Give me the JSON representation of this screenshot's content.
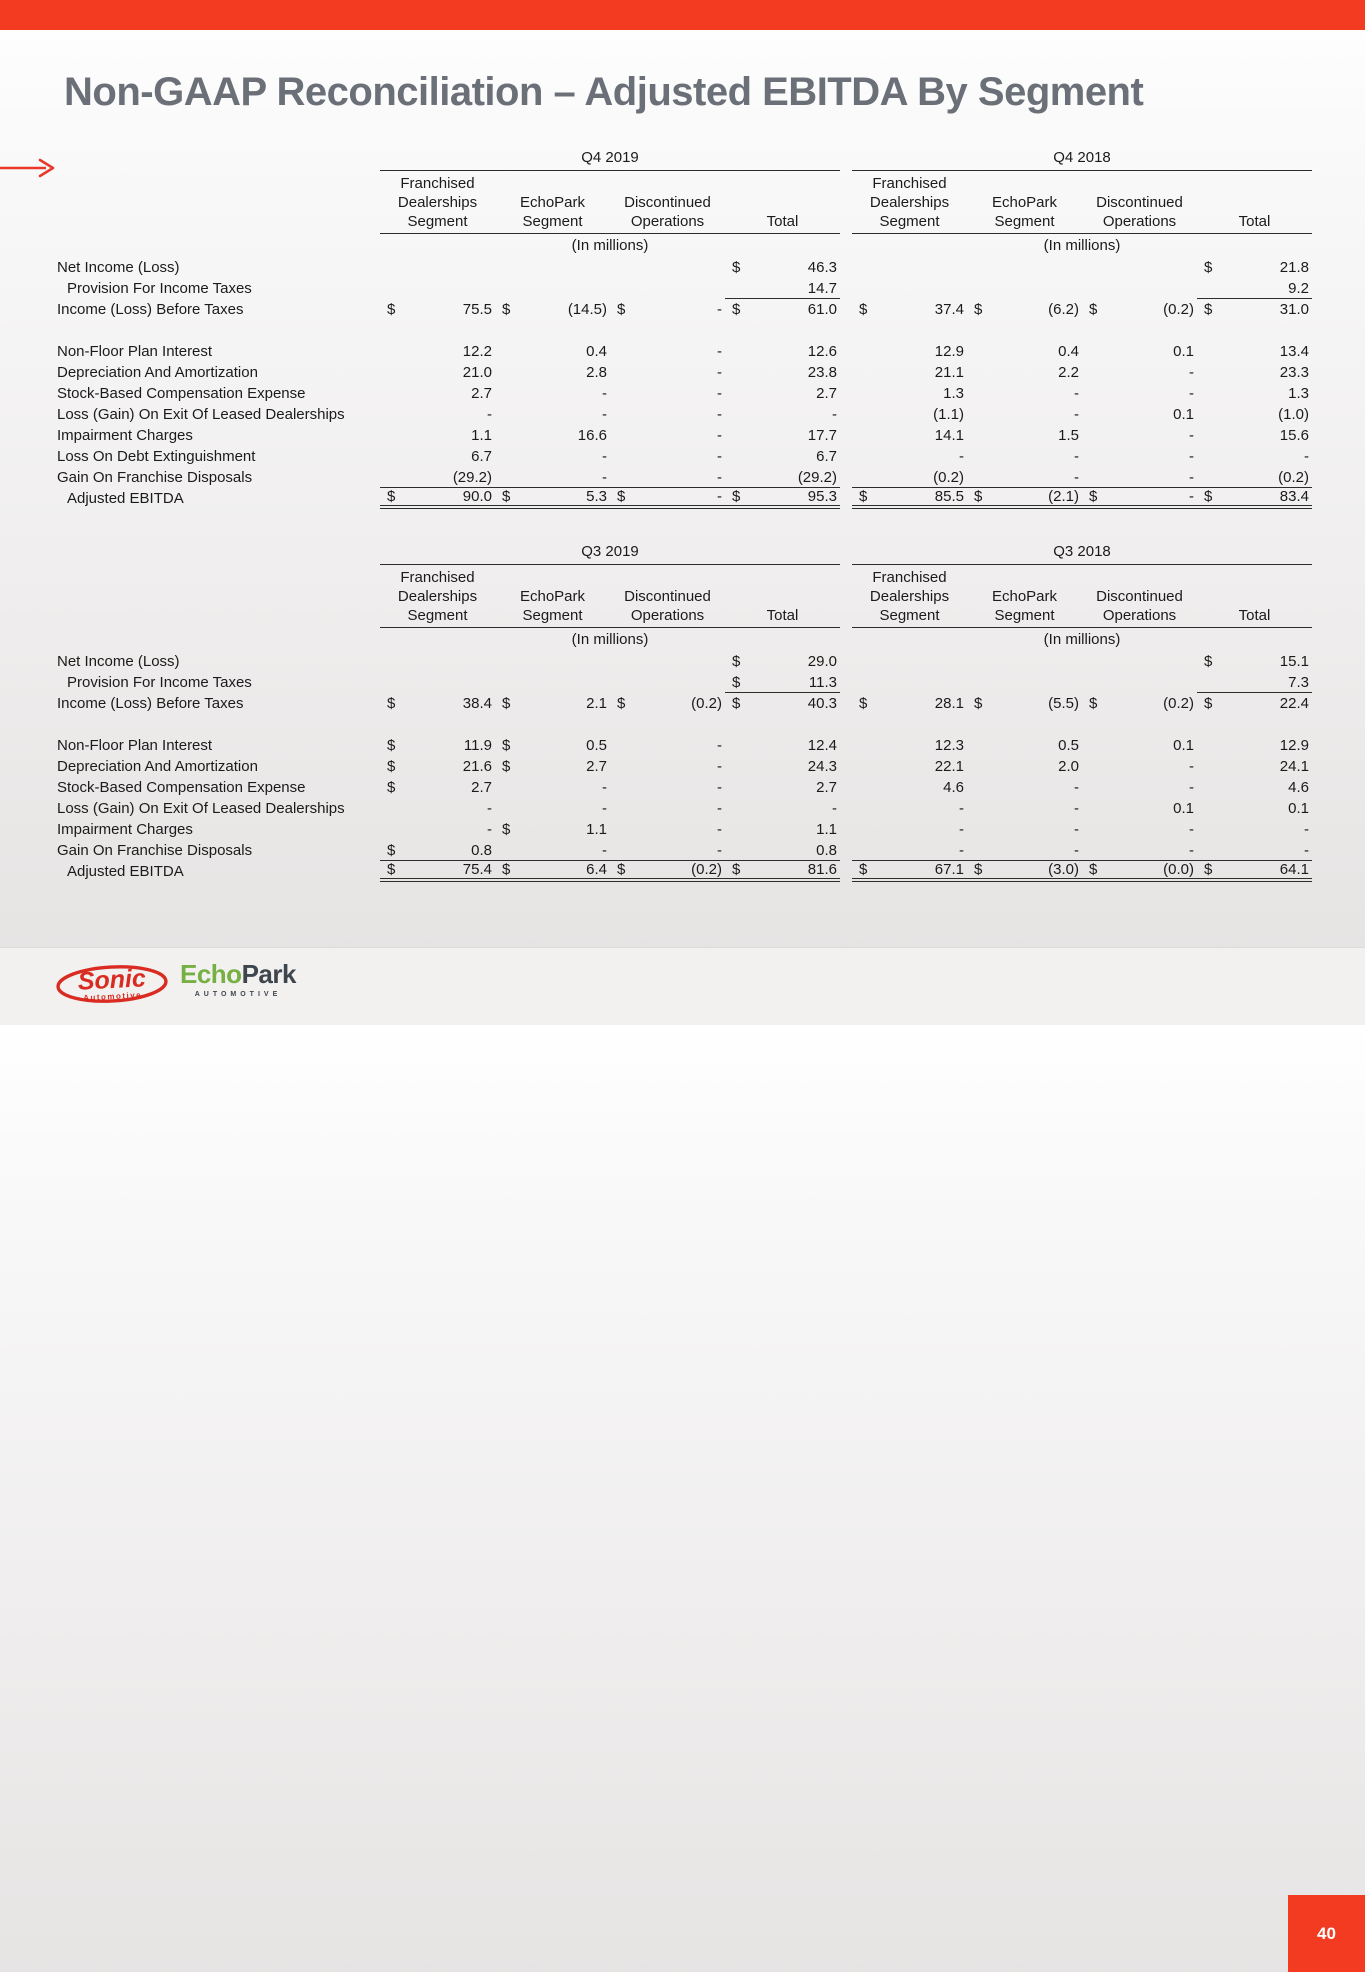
{
  "slide": {
    "title": "Non-GAAP Reconciliation – Adjusted EBITDA By Segment",
    "page_number": "40",
    "colors": {
      "accent_red": "#F23B21",
      "title_gray": "#6B7078",
      "sonic_red": "#D92B21",
      "echopark_green": "#76B043",
      "echopark_dark": "#3D454D",
      "table_text": "#1B1B1B"
    }
  },
  "footer": {
    "sonic_logo": {
      "name": "Sonic",
      "sub": "Automotive"
    },
    "echopark_logo": {
      "part1": "Echo",
      "part2": "Park",
      "sub": "AUTOMOTIVE"
    }
  },
  "tables": [
    {
      "id": "q4",
      "row_labels": [
        {
          "label": "Net Income (Loss)"
        },
        {
          "label": "Provision For Income Taxes",
          "indent": true,
          "rule": "total"
        },
        {
          "label": "Income (Loss) Before Taxes"
        },
        {
          "spacer": true
        },
        {
          "label": "Non-Floor Plan Interest"
        },
        {
          "label": "Depreciation And Amortization"
        },
        {
          "label": "Stock-Based Compensation Expense"
        },
        {
          "label": "Loss (Gain) On Exit Of Leased Dealerships"
        },
        {
          "label": "Impairment Charges"
        },
        {
          "label": "Loss On Debt Extinguishment"
        },
        {
          "label": "Gain On Franchise Disposals",
          "rule": "full"
        },
        {
          "label": "Adjusted EBITDA",
          "indent": true,
          "total": true
        }
      ],
      "periods": [
        {
          "period": "Q4 2019",
          "columns": [
            [
              "Franchised",
              "Dealerships",
              "Segment"
            ],
            [
              "EchoPark",
              "Segment"
            ],
            [
              "Discontinued",
              "Operations"
            ],
            [
              "Total"
            ]
          ],
          "units": "(In millions)",
          "rows": [
            [
              [
                "",
                ""
              ],
              [
                "",
                ""
              ],
              [
                "",
                ""
              ],
              [
                "$",
                "46.3"
              ]
            ],
            [
              [
                "",
                ""
              ],
              [
                "",
                ""
              ],
              [
                "",
                ""
              ],
              [
                "",
                "14.7"
              ]
            ],
            [
              [
                "$",
                "75.5"
              ],
              [
                "$",
                "(14.5)"
              ],
              [
                "$",
                "-"
              ],
              [
                "$",
                "61.0"
              ]
            ],
            null,
            [
              [
                "",
                "12.2"
              ],
              [
                "",
                "0.4"
              ],
              [
                "",
                "-"
              ],
              [
                "",
                "12.6"
              ]
            ],
            [
              [
                "",
                "21.0"
              ],
              [
                "",
                "2.8"
              ],
              [
                "",
                "-"
              ],
              [
                "",
                "23.8"
              ]
            ],
            [
              [
                "",
                "2.7"
              ],
              [
                "",
                "-"
              ],
              [
                "",
                "-"
              ],
              [
                "",
                "2.7"
              ]
            ],
            [
              [
                "",
                "-"
              ],
              [
                "",
                "-"
              ],
              [
                "",
                "-"
              ],
              [
                "",
                "-"
              ]
            ],
            [
              [
                "",
                "1.1"
              ],
              [
                "",
                "16.6"
              ],
              [
                "",
                "-"
              ],
              [
                "",
                "17.7"
              ]
            ],
            [
              [
                "",
                "6.7"
              ],
              [
                "",
                "-"
              ],
              [
                "",
                "-"
              ],
              [
                "",
                "6.7"
              ]
            ],
            [
              [
                "",
                "(29.2)"
              ],
              [
                "",
                "-"
              ],
              [
                "",
                "-"
              ],
              [
                "",
                "(29.2)"
              ]
            ],
            [
              [
                "$",
                "90.0"
              ],
              [
                "$",
                "5.3"
              ],
              [
                "$",
                "-"
              ],
              [
                "$",
                "95.3"
              ]
            ]
          ]
        },
        {
          "period": "Q4 2018",
          "columns": [
            [
              "Franchised",
              "Dealerships",
              "Segment"
            ],
            [
              "EchoPark",
              "Segment"
            ],
            [
              "Discontinued",
              "Operations"
            ],
            [
              "Total"
            ]
          ],
          "units": "(In millions)",
          "rows": [
            [
              [
                "",
                ""
              ],
              [
                "",
                ""
              ],
              [
                "",
                ""
              ],
              [
                "$",
                "21.8"
              ]
            ],
            [
              [
                "",
                ""
              ],
              [
                "",
                ""
              ],
              [
                "",
                ""
              ],
              [
                "",
                "9.2"
              ]
            ],
            [
              [
                "$",
                "37.4"
              ],
              [
                "$",
                "(6.2)"
              ],
              [
                "$",
                "(0.2)"
              ],
              [
                "$",
                "31.0"
              ]
            ],
            null,
            [
              [
                "",
                "12.9"
              ],
              [
                "",
                "0.4"
              ],
              [
                "",
                "0.1"
              ],
              [
                "",
                "13.4"
              ]
            ],
            [
              [
                "",
                "21.1"
              ],
              [
                "",
                "2.2"
              ],
              [
                "",
                "-"
              ],
              [
                "",
                "23.3"
              ]
            ],
            [
              [
                "",
                "1.3"
              ],
              [
                "",
                "-"
              ],
              [
                "",
                "-"
              ],
              [
                "",
                "1.3"
              ]
            ],
            [
              [
                "",
                "(1.1)"
              ],
              [
                "",
                "-"
              ],
              [
                "",
                "0.1"
              ],
              [
                "",
                "(1.0)"
              ]
            ],
            [
              [
                "",
                "14.1"
              ],
              [
                "",
                "1.5"
              ],
              [
                "",
                "-"
              ],
              [
                "",
                "15.6"
              ]
            ],
            [
              [
                "",
                "-"
              ],
              [
                "",
                "-"
              ],
              [
                "",
                "-"
              ],
              [
                "",
                "-"
              ]
            ],
            [
              [
                "",
                "(0.2)"
              ],
              [
                "",
                "-"
              ],
              [
                "",
                "-"
              ],
              [
                "",
                "(0.2)"
              ]
            ],
            [
              [
                "$",
                "85.5"
              ],
              [
                "$",
                "(2.1)"
              ],
              [
                "$",
                "-"
              ],
              [
                "$",
                "83.4"
              ]
            ]
          ]
        }
      ]
    },
    {
      "id": "q3",
      "row_labels": [
        {
          "label": "Net Income (Loss)"
        },
        {
          "label": "Provision For Income Taxes",
          "indent": true,
          "rule": "total"
        },
        {
          "label": "Income (Loss) Before Taxes"
        },
        {
          "spacer": true
        },
        {
          "label": "Non-Floor Plan Interest"
        },
        {
          "label": "Depreciation And Amortization"
        },
        {
          "label": "Stock-Based Compensation Expense"
        },
        {
          "label": "Loss (Gain) On Exit Of Leased Dealerships"
        },
        {
          "label": "Impairment Charges"
        },
        {
          "label": "Gain On Franchise Disposals",
          "rule": "full"
        },
        {
          "label": "Adjusted EBITDA",
          "indent": true,
          "total": true
        }
      ],
      "periods": [
        {
          "period": "Q3 2019",
          "columns": [
            [
              "Franchised",
              "Dealerships",
              "Segment"
            ],
            [
              "EchoPark",
              "Segment"
            ],
            [
              "Discontinued",
              "Operations"
            ],
            [
              "Total"
            ]
          ],
          "units": "(In millions)",
          "rows": [
            [
              [
                "",
                ""
              ],
              [
                "",
                ""
              ],
              [
                "",
                ""
              ],
              [
                "$",
                "29.0"
              ]
            ],
            [
              [
                "",
                ""
              ],
              [
                "",
                ""
              ],
              [
                "",
                ""
              ],
              [
                "$",
                "11.3"
              ]
            ],
            [
              [
                "$",
                "38.4"
              ],
              [
                "$",
                "2.1"
              ],
              [
                "$",
                "(0.2)"
              ],
              [
                "$",
                "40.3"
              ]
            ],
            null,
            [
              [
                "$",
                "11.9"
              ],
              [
                "$",
                "0.5"
              ],
              [
                "",
                "-"
              ],
              [
                "",
                "12.4"
              ]
            ],
            [
              [
                "$",
                "21.6"
              ],
              [
                "$",
                "2.7"
              ],
              [
                "",
                "-"
              ],
              [
                "",
                "24.3"
              ]
            ],
            [
              [
                "$",
                "2.7"
              ],
              [
                "",
                "-"
              ],
              [
                "",
                "-"
              ],
              [
                "",
                "2.7"
              ]
            ],
            [
              [
                "",
                "-"
              ],
              [
                "",
                "-"
              ],
              [
                "",
                "-"
              ],
              [
                "",
                "-"
              ]
            ],
            [
              [
                "",
                "-"
              ],
              [
                "$",
                "1.1"
              ],
              [
                "",
                "-"
              ],
              [
                "",
                "1.1"
              ]
            ],
            [
              [
                "$",
                "0.8"
              ],
              [
                "",
                "-"
              ],
              [
                "",
                "-"
              ],
              [
                "",
                "0.8"
              ]
            ],
            [
              [
                "$",
                "75.4"
              ],
              [
                "$",
                "6.4"
              ],
              [
                "$",
                "(0.2)"
              ],
              [
                "$",
                "81.6"
              ]
            ]
          ]
        },
        {
          "period": "Q3 2018",
          "columns": [
            [
              "Franchised",
              "Dealerships",
              "Segment"
            ],
            [
              "EchoPark",
              "Segment"
            ],
            [
              "Discontinued",
              "Operations"
            ],
            [
              "Total"
            ]
          ],
          "units": "(In millions)",
          "rows": [
            [
              [
                "",
                ""
              ],
              [
                "",
                ""
              ],
              [
                "",
                ""
              ],
              [
                "$",
                "15.1"
              ]
            ],
            [
              [
                "",
                ""
              ],
              [
                "",
                ""
              ],
              [
                "",
                ""
              ],
              [
                "",
                "7.3"
              ]
            ],
            [
              [
                "$",
                "28.1"
              ],
              [
                "$",
                "(5.5)"
              ],
              [
                "$",
                "(0.2)"
              ],
              [
                "$",
                "22.4"
              ]
            ],
            null,
            [
              [
                "",
                "12.3"
              ],
              [
                "",
                "0.5"
              ],
              [
                "",
                "0.1"
              ],
              [
                "",
                "12.9"
              ]
            ],
            [
              [
                "",
                "22.1"
              ],
              [
                "",
                "2.0"
              ],
              [
                "",
                "-"
              ],
              [
                "",
                "24.1"
              ]
            ],
            [
              [
                "",
                "4.6"
              ],
              [
                "",
                "-"
              ],
              [
                "",
                "-"
              ],
              [
                "",
                "4.6"
              ]
            ],
            [
              [
                "",
                "-"
              ],
              [
                "",
                "-"
              ],
              [
                "",
                "0.1"
              ],
              [
                "",
                "0.1"
              ]
            ],
            [
              [
                "",
                "-"
              ],
              [
                "",
                "-"
              ],
              [
                "",
                "-"
              ],
              [
                "",
                "-"
              ]
            ],
            [
              [
                "",
                "-"
              ],
              [
                "",
                "-"
              ],
              [
                "",
                "-"
              ],
              [
                "",
                "-"
              ]
            ],
            [
              [
                "$",
                "67.1"
              ],
              [
                "$",
                "(3.0)"
              ],
              [
                "$",
                "(0.0)"
              ],
              [
                "$",
                "64.1"
              ]
            ]
          ]
        }
      ]
    }
  ]
}
